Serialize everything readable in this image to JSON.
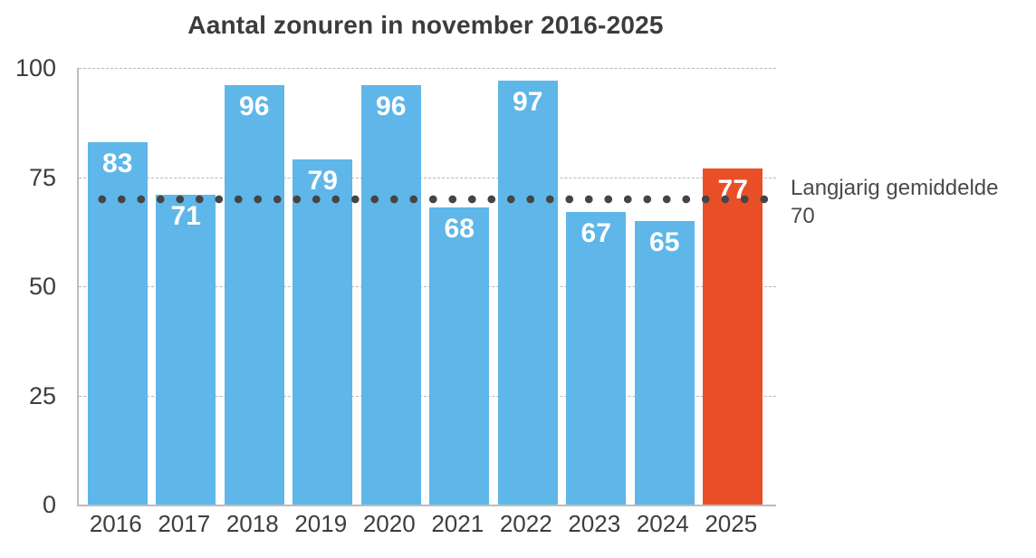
{
  "chart_data": {
    "type": "bar",
    "title": "Aantal zonuren in november 2016-2025",
    "categories": [
      "2016",
      "2017",
      "2018",
      "2019",
      "2020",
      "2021",
      "2022",
      "2023",
      "2024",
      "2025"
    ],
    "values": [
      83,
      71,
      96,
      79,
      96,
      68,
      97,
      67,
      65,
      77
    ],
    "highlight_index": 9,
    "xlabel": "",
    "ylabel": "",
    "ylim": [
      0,
      100
    ],
    "y_ticks": [
      0,
      25,
      50,
      75,
      100
    ],
    "grid": true,
    "average_line": {
      "value": 70,
      "label": "Langjarig gemiddelde",
      "value_label": "70"
    },
    "colors": {
      "bar": "#5FB6E8",
      "bar_highlight": "#E94F26",
      "avg_dots": "#454545",
      "grid": "#B8B8B8",
      "axis": "#BDBDBD",
      "text": "#3D3D3D"
    }
  }
}
